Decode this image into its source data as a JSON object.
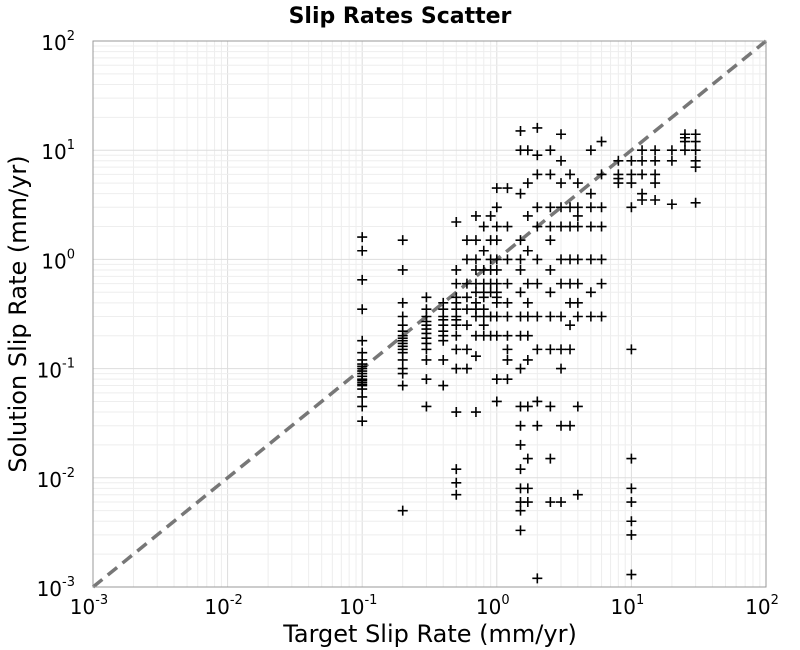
{
  "chart_data": {
    "type": "scatter",
    "title": "Slip Rates Scatter",
    "xlabel": "Target Slip Rate (mm/yr)",
    "ylabel": "Solution Slip Rate (mm/yr)",
    "xscale": "log",
    "yscale": "log",
    "xlim": [
      0.001,
      100
    ],
    "ylim": [
      0.001,
      100
    ],
    "grid": true,
    "marker": "+",
    "marker_color": "#000000",
    "reference_line": {
      "style": "dashed",
      "color": "#777777",
      "x": [
        0.001,
        100
      ],
      "y": [
        0.001,
        100
      ]
    },
    "x_ticks": [
      {
        "base": "10",
        "exp": "-3"
      },
      {
        "base": "10",
        "exp": "-2"
      },
      {
        "base": "10",
        "exp": "-1"
      },
      {
        "base": "10",
        "exp": "0"
      },
      {
        "base": "10",
        "exp": "1"
      },
      {
        "base": "10",
        "exp": "2"
      }
    ],
    "y_ticks": [
      {
        "base": "10",
        "exp": "-3"
      },
      {
        "base": "10",
        "exp": "-2"
      },
      {
        "base": "10",
        "exp": "-1"
      },
      {
        "base": "10",
        "exp": "0"
      },
      {
        "base": "10",
        "exp": "1"
      },
      {
        "base": "10",
        "exp": "2"
      }
    ],
    "x": [
      0.1,
      0.1,
      0.1,
      0.1,
      0.1,
      0.1,
      0.1,
      0.1,
      0.1,
      0.1,
      0.1,
      0.1,
      0.1,
      0.1,
      0.1,
      0.1,
      0.1,
      0.1,
      0.1,
      0.1,
      0.1,
      0.1,
      0.2,
      0.2,
      0.2,
      0.2,
      0.2,
      0.2,
      0.2,
      0.2,
      0.2,
      0.2,
      0.2,
      0.2,
      0.2,
      0.2,
      0.2,
      0.2,
      0.2,
      0.2,
      0.3,
      0.3,
      0.3,
      0.3,
      0.3,
      0.3,
      0.3,
      0.3,
      0.3,
      0.3,
      0.3,
      0.3,
      0.3,
      0.4,
      0.4,
      0.4,
      0.4,
      0.4,
      0.4,
      0.4,
      0.4,
      0.4,
      0.4,
      0.5,
      0.5,
      0.5,
      0.5,
      0.5,
      0.5,
      0.5,
      0.5,
      0.5,
      0.5,
      0.5,
      0.5,
      0.5,
      0.5,
      0.5,
      0.5,
      0.6,
      0.6,
      0.6,
      0.6,
      0.6,
      0.6,
      0.6,
      0.6,
      0.7,
      0.7,
      0.7,
      0.7,
      0.7,
      0.7,
      0.7,
      0.7,
      0.7,
      0.7,
      0.7,
      0.7,
      0.8,
      0.8,
      0.8,
      0.8,
      0.8,
      0.8,
      0.8,
      0.8,
      0.8,
      0.8,
      0.9,
      0.9,
      0.9,
      0.9,
      0.9,
      0.9,
      0.9,
      0.9,
      1.0,
      1.0,
      1.0,
      1.0,
      1.0,
      1.0,
      1.0,
      1.0,
      1.0,
      1.0,
      1.0,
      1.0,
      1.0,
      1.0,
      1.2,
      1.2,
      1.2,
      1.2,
      1.2,
      1.2,
      1.2,
      1.2,
      1.2,
      1.2,
      1.5,
      1.5,
      1.5,
      1.5,
      1.5,
      1.5,
      1.5,
      1.5,
      1.5,
      1.5,
      1.5,
      1.5,
      1.5,
      1.5,
      1.5,
      1.5,
      1.5,
      1.5,
      1.7,
      1.7,
      1.7,
      1.7,
      1.7,
      1.7,
      1.7,
      1.7,
      1.7,
      1.7,
      1.7,
      1.7,
      1.7,
      2.0,
      2.0,
      2.0,
      2.0,
      2.0,
      2.0,
      2.0,
      2.0,
      2.0,
      2.0,
      2.0,
      2.0,
      2.5,
      2.5,
      2.5,
      2.5,
      2.5,
      2.5,
      2.5,
      2.5,
      2.5,
      2.5,
      2.5,
      2.5,
      3.0,
      3.0,
      3.0,
      3.0,
      3.0,
      3.0,
      3.0,
      3.0,
      3.0,
      3.0,
      3.0,
      3.0,
      3.5,
      3.5,
      3.5,
      3.5,
      3.5,
      3.5,
      3.5,
      3.5,
      3.5,
      4.0,
      4.0,
      4.0,
      4.0,
      4.0,
      4.0,
      4.0,
      4.0,
      4.0,
      4.0,
      5.0,
      5.0,
      5.0,
      5.0,
      5.0,
      5.0,
      5.0,
      6.0,
      6.0,
      6.0,
      6.0,
      6.0,
      6.0,
      6.0,
      8.0,
      8.0,
      8.0,
      8.0,
      10.0,
      10.0,
      10.0,
      10.0,
      10.0,
      10.0,
      10.0,
      10.0,
      10.0,
      10.0,
      10.0,
      12.0,
      12.0,
      12.0,
      12.0,
      12.0,
      15.0,
      15.0,
      15.0,
      15.0,
      15.0,
      20.0,
      20.0,
      20.0,
      25.0,
      25.0,
      25.0,
      25.0,
      30.0,
      30.0,
      30.0,
      30.0,
      30.0,
      30.0
    ],
    "y": [
      1.6,
      1.2,
      0.65,
      0.35,
      0.18,
      0.14,
      0.12,
      0.11,
      0.105,
      0.1,
      0.095,
      0.09,
      0.085,
      0.08,
      0.078,
      0.075,
      0.072,
      0.07,
      0.065,
      0.055,
      0.045,
      0.033,
      1.5,
      0.8,
      0.4,
      0.3,
      0.25,
      0.22,
      0.2,
      0.19,
      0.18,
      0.17,
      0.16,
      0.15,
      0.14,
      0.12,
      0.1,
      0.09,
      0.07,
      0.005,
      0.45,
      0.35,
      0.3,
      0.27,
      0.25,
      0.23,
      0.21,
      0.19,
      0.17,
      0.15,
      0.12,
      0.08,
      0.045,
      0.4,
      0.35,
      0.3,
      0.28,
      0.25,
      0.22,
      0.2,
      0.18,
      0.12,
      0.07,
      2.2,
      0.8,
      0.6,
      0.45,
      0.4,
      0.35,
      0.3,
      0.28,
      0.25,
      0.2,
      0.15,
      0.1,
      0.04,
      0.012,
      0.009,
      0.007,
      1.5,
      1.0,
      0.6,
      0.45,
      0.35,
      0.25,
      0.15,
      0.1,
      2.5,
      1.5,
      1.0,
      0.8,
      0.6,
      0.5,
      0.4,
      0.35,
      0.3,
      0.2,
      0.13,
      0.04,
      2.0,
      1.2,
      0.8,
      0.6,
      0.5,
      0.45,
      0.35,
      0.3,
      0.25,
      0.2,
      2.5,
      1.5,
      1.0,
      0.8,
      0.6,
      0.5,
      0.3,
      0.2,
      4.5,
      3.0,
      2.0,
      1.5,
      1.0,
      0.8,
      0.6,
      0.5,
      0.45,
      0.4,
      0.3,
      0.2,
      0.08,
      0.05,
      4.5,
      2.0,
      1.0,
      0.6,
      0.4,
      0.3,
      0.2,
      0.15,
      0.12,
      0.08,
      15.0,
      10.0,
      4.0,
      1.5,
      1.0,
      0.8,
      0.5,
      0.3,
      0.2,
      0.1,
      0.045,
      0.03,
      0.02,
      0.012,
      0.008,
      0.006,
      0.005,
      0.0033,
      10.0,
      5.0,
      2.5,
      1.2,
      0.6,
      0.4,
      0.3,
      0.2,
      0.12,
      0.045,
      0.015,
      0.008,
      0.006,
      16.0,
      9.0,
      6.0,
      3.0,
      2.0,
      1.0,
      0.6,
      0.3,
      0.15,
      0.05,
      0.03,
      0.0012,
      10.0,
      6.0,
      3.0,
      2.0,
      1.5,
      0.8,
      0.5,
      0.3,
      0.15,
      0.045,
      0.015,
      0.006,
      14.0,
      8.0,
      5.0,
      3.0,
      2.0,
      1.0,
      0.6,
      0.3,
      0.15,
      0.1,
      0.03,
      0.006,
      6.0,
      3.0,
      2.0,
      1.0,
      0.6,
      0.4,
      0.25,
      0.15,
      0.03,
      5.0,
      3.0,
      2.5,
      2.0,
      1.0,
      0.6,
      0.4,
      0.3,
      0.045,
      0.007,
      10.0,
      4.0,
      3.0,
      2.0,
      1.0,
      0.5,
      0.3,
      12.0,
      6.0,
      3.0,
      2.0,
      1.0,
      0.6,
      0.3,
      8.0,
      6.0,
      5.5,
      5.0,
      8.0,
      6.0,
      5.0,
      3.0,
      0.15,
      0.015,
      0.008,
      0.006,
      0.004,
      0.003,
      0.0013,
      10.0,
      8.0,
      6.0,
      4.0,
      3.5,
      10.0,
      8.0,
      6.0,
      5.0,
      3.5,
      10.0,
      8.0,
      3.2,
      14.0,
      13.0,
      12.0,
      10.0,
      14.0,
      12.0,
      10.0,
      8.0,
      7.0,
      3.3
    ]
  }
}
